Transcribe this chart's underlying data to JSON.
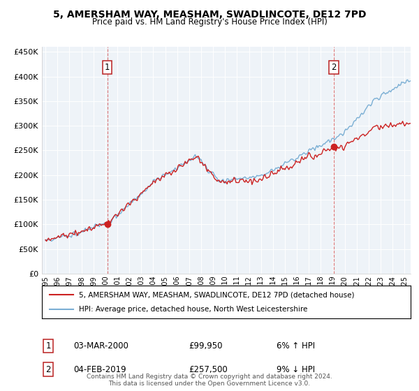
{
  "title_line1": "5, AMERSHAM WAY, MEASHAM, SWADLINCOTE, DE12 7PD",
  "title_line2": "Price paid vs. HM Land Registry's House Price Index (HPI)",
  "ylabel_ticks": [
    "£0",
    "£50K",
    "£100K",
    "£150K",
    "£200K",
    "£250K",
    "£300K",
    "£350K",
    "£400K",
    "£450K"
  ],
  "ylabel_values": [
    0,
    50000,
    100000,
    150000,
    200000,
    250000,
    300000,
    350000,
    400000,
    450000
  ],
  "ylim": [
    0,
    460000
  ],
  "xlim_start": 1994.7,
  "xlim_end": 2025.5,
  "xtick_years": [
    1995,
    1996,
    1997,
    1998,
    1999,
    2000,
    2001,
    2002,
    2003,
    2004,
    2005,
    2006,
    2007,
    2008,
    2009,
    2010,
    2011,
    2012,
    2013,
    2014,
    2015,
    2016,
    2017,
    2018,
    2019,
    2020,
    2021,
    2022,
    2023,
    2024,
    2025
  ],
  "hpi_color": "#7bafd4",
  "price_color": "#cc2222",
  "transaction1_x": 2000.17,
  "transaction1_y": 99950,
  "transaction2_x": 2019.09,
  "transaction2_y": 257500,
  "legend_line1": "5, AMERSHAM WAY, MEASHAM, SWADLINCOTE, DE12 7PD (detached house)",
  "legend_line2": "HPI: Average price, detached house, North West Leicestershire",
  "annotation1_date": "03-MAR-2000",
  "annotation1_price": "£99,950",
  "annotation1_hpi": "6% ↑ HPI",
  "annotation2_date": "04-FEB-2019",
  "annotation2_price": "£257,500",
  "annotation2_hpi": "9% ↓ HPI",
  "footer": "Contains HM Land Registry data © Crown copyright and database right 2024.\nThis data is licensed under the Open Government Licence v3.0.",
  "bg_color": "#ffffff",
  "plot_bg_color": "#eef3f8",
  "grid_color": "#ffffff"
}
